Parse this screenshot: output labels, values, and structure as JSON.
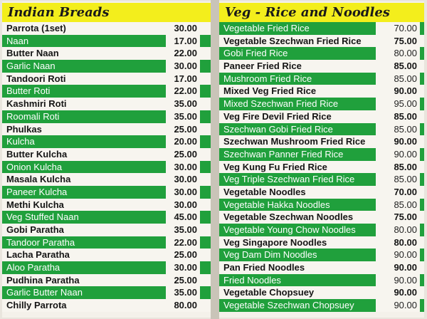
{
  "left": {
    "title": "Indian Breads",
    "items": [
      {
        "name": "Parrota (1set)",
        "price": "30.00",
        "style": "w"
      },
      {
        "name": "Naan",
        "price": "17.00",
        "style": "g"
      },
      {
        "name": "Butter Naan",
        "price": "22.00",
        "style": "w"
      },
      {
        "name": "Garlic Naan",
        "price": "30.00",
        "style": "g"
      },
      {
        "name": "Tandoori Roti",
        "price": "17.00",
        "style": "w"
      },
      {
        "name": "Butter Roti",
        "price": "22.00",
        "style": "g"
      },
      {
        "name": "Kashmiri Roti",
        "price": "35.00",
        "style": "w"
      },
      {
        "name": "Roomali Roti",
        "price": "35.00",
        "style": "g"
      },
      {
        "name": "Phulkas",
        "price": "25.00",
        "style": "w"
      },
      {
        "name": "Kulcha",
        "price": "20.00",
        "style": "g"
      },
      {
        "name": "Butter Kulcha",
        "price": "25.00",
        "style": "w"
      },
      {
        "name": "Onion Kulcha",
        "price": "30.00",
        "style": "g"
      },
      {
        "name": "Masala Kulcha",
        "price": "30.00",
        "style": "w"
      },
      {
        "name": "Paneer Kulcha",
        "price": "30.00",
        "style": "g"
      },
      {
        "name": "Methi Kulcha",
        "price": "30.00",
        "style": "w"
      },
      {
        "name": "Veg Stuffed Naan",
        "price": "45.00",
        "style": "g"
      },
      {
        "name": "Gobi Paratha",
        "price": "35.00",
        "style": "w"
      },
      {
        "name": "Tandoor Paratha",
        "price": "22.00",
        "style": "g"
      },
      {
        "name": "Lacha Paratha",
        "price": "25.00",
        "style": "w"
      },
      {
        "name": "Aloo Paratha",
        "price": "30.00",
        "style": "g"
      },
      {
        "name": "Pudhina Paratha",
        "price": "25.00",
        "style": "w"
      },
      {
        "name": "Garlic Butter Naan",
        "price": "35.00",
        "style": "g"
      },
      {
        "name": "Chilly Parrota",
        "price": "80.00",
        "style": "w"
      }
    ]
  },
  "right": {
    "title": "Veg - Rice and Noodles",
    "items": [
      {
        "name": "Vegetable Fried Rice",
        "price": "70.00",
        "style": "g"
      },
      {
        "name": "Vegetable Szechwan Fried Rice",
        "price": "75.00",
        "style": "w"
      },
      {
        "name": "Gobi Fried Rice",
        "price": "80.00",
        "style": "g"
      },
      {
        "name": "Paneer Fried Rice",
        "price": "85.00",
        "style": "w"
      },
      {
        "name": "Mushroom Fried Rice",
        "price": "85.00",
        "style": "g"
      },
      {
        "name": "Mixed Veg Fried Rice",
        "price": "90.00",
        "style": "w"
      },
      {
        "name": "Mixed Szechwan Fried Rice",
        "price": "95.00",
        "style": "g"
      },
      {
        "name": "Veg Fire Devil Fried Rice",
        "price": "85.00",
        "style": "w"
      },
      {
        "name": "Szechwan Gobi Fried Rice",
        "price": "85.00",
        "style": "g"
      },
      {
        "name": "Szechwan Mushroom Fried Rice",
        "price": "90.00",
        "style": "w"
      },
      {
        "name": "Szechwan Panner Fried Rice",
        "price": "90.00",
        "style": "g"
      },
      {
        "name": "Veg Kung Fu Fried Rice",
        "price": "85.00",
        "style": "w"
      },
      {
        "name": "Veg Triple Szechwan Fried Rice",
        "price": "85.00",
        "style": "g"
      },
      {
        "name": "Vegetable Noodles",
        "price": "70.00",
        "style": "w"
      },
      {
        "name": "Vegetable Hakka Noodles",
        "price": "85.00",
        "style": "g"
      },
      {
        "name": "Vegetable Szechwan Noodles",
        "price": "75.00",
        "style": "w"
      },
      {
        "name": "Vegetable Young Chow Noodles",
        "price": "80.00",
        "style": "g"
      },
      {
        "name": "Veg Singapore Noodles",
        "price": "80.00",
        "style": "w"
      },
      {
        "name": "Veg Dam Dim Noodles",
        "price": "90.00",
        "style": "g"
      },
      {
        "name": "Pan Fried Noodles",
        "price": "90.00",
        "style": "w"
      },
      {
        "name": "Fried Noodles",
        "price": "90.00",
        "style": "g"
      },
      {
        "name": "Vegetable Chopsuey",
        "price": "90.00",
        "style": "w"
      },
      {
        "name": "Vegetable Szechwan Chopsuey",
        "price": "90.00",
        "style": "g"
      }
    ]
  }
}
